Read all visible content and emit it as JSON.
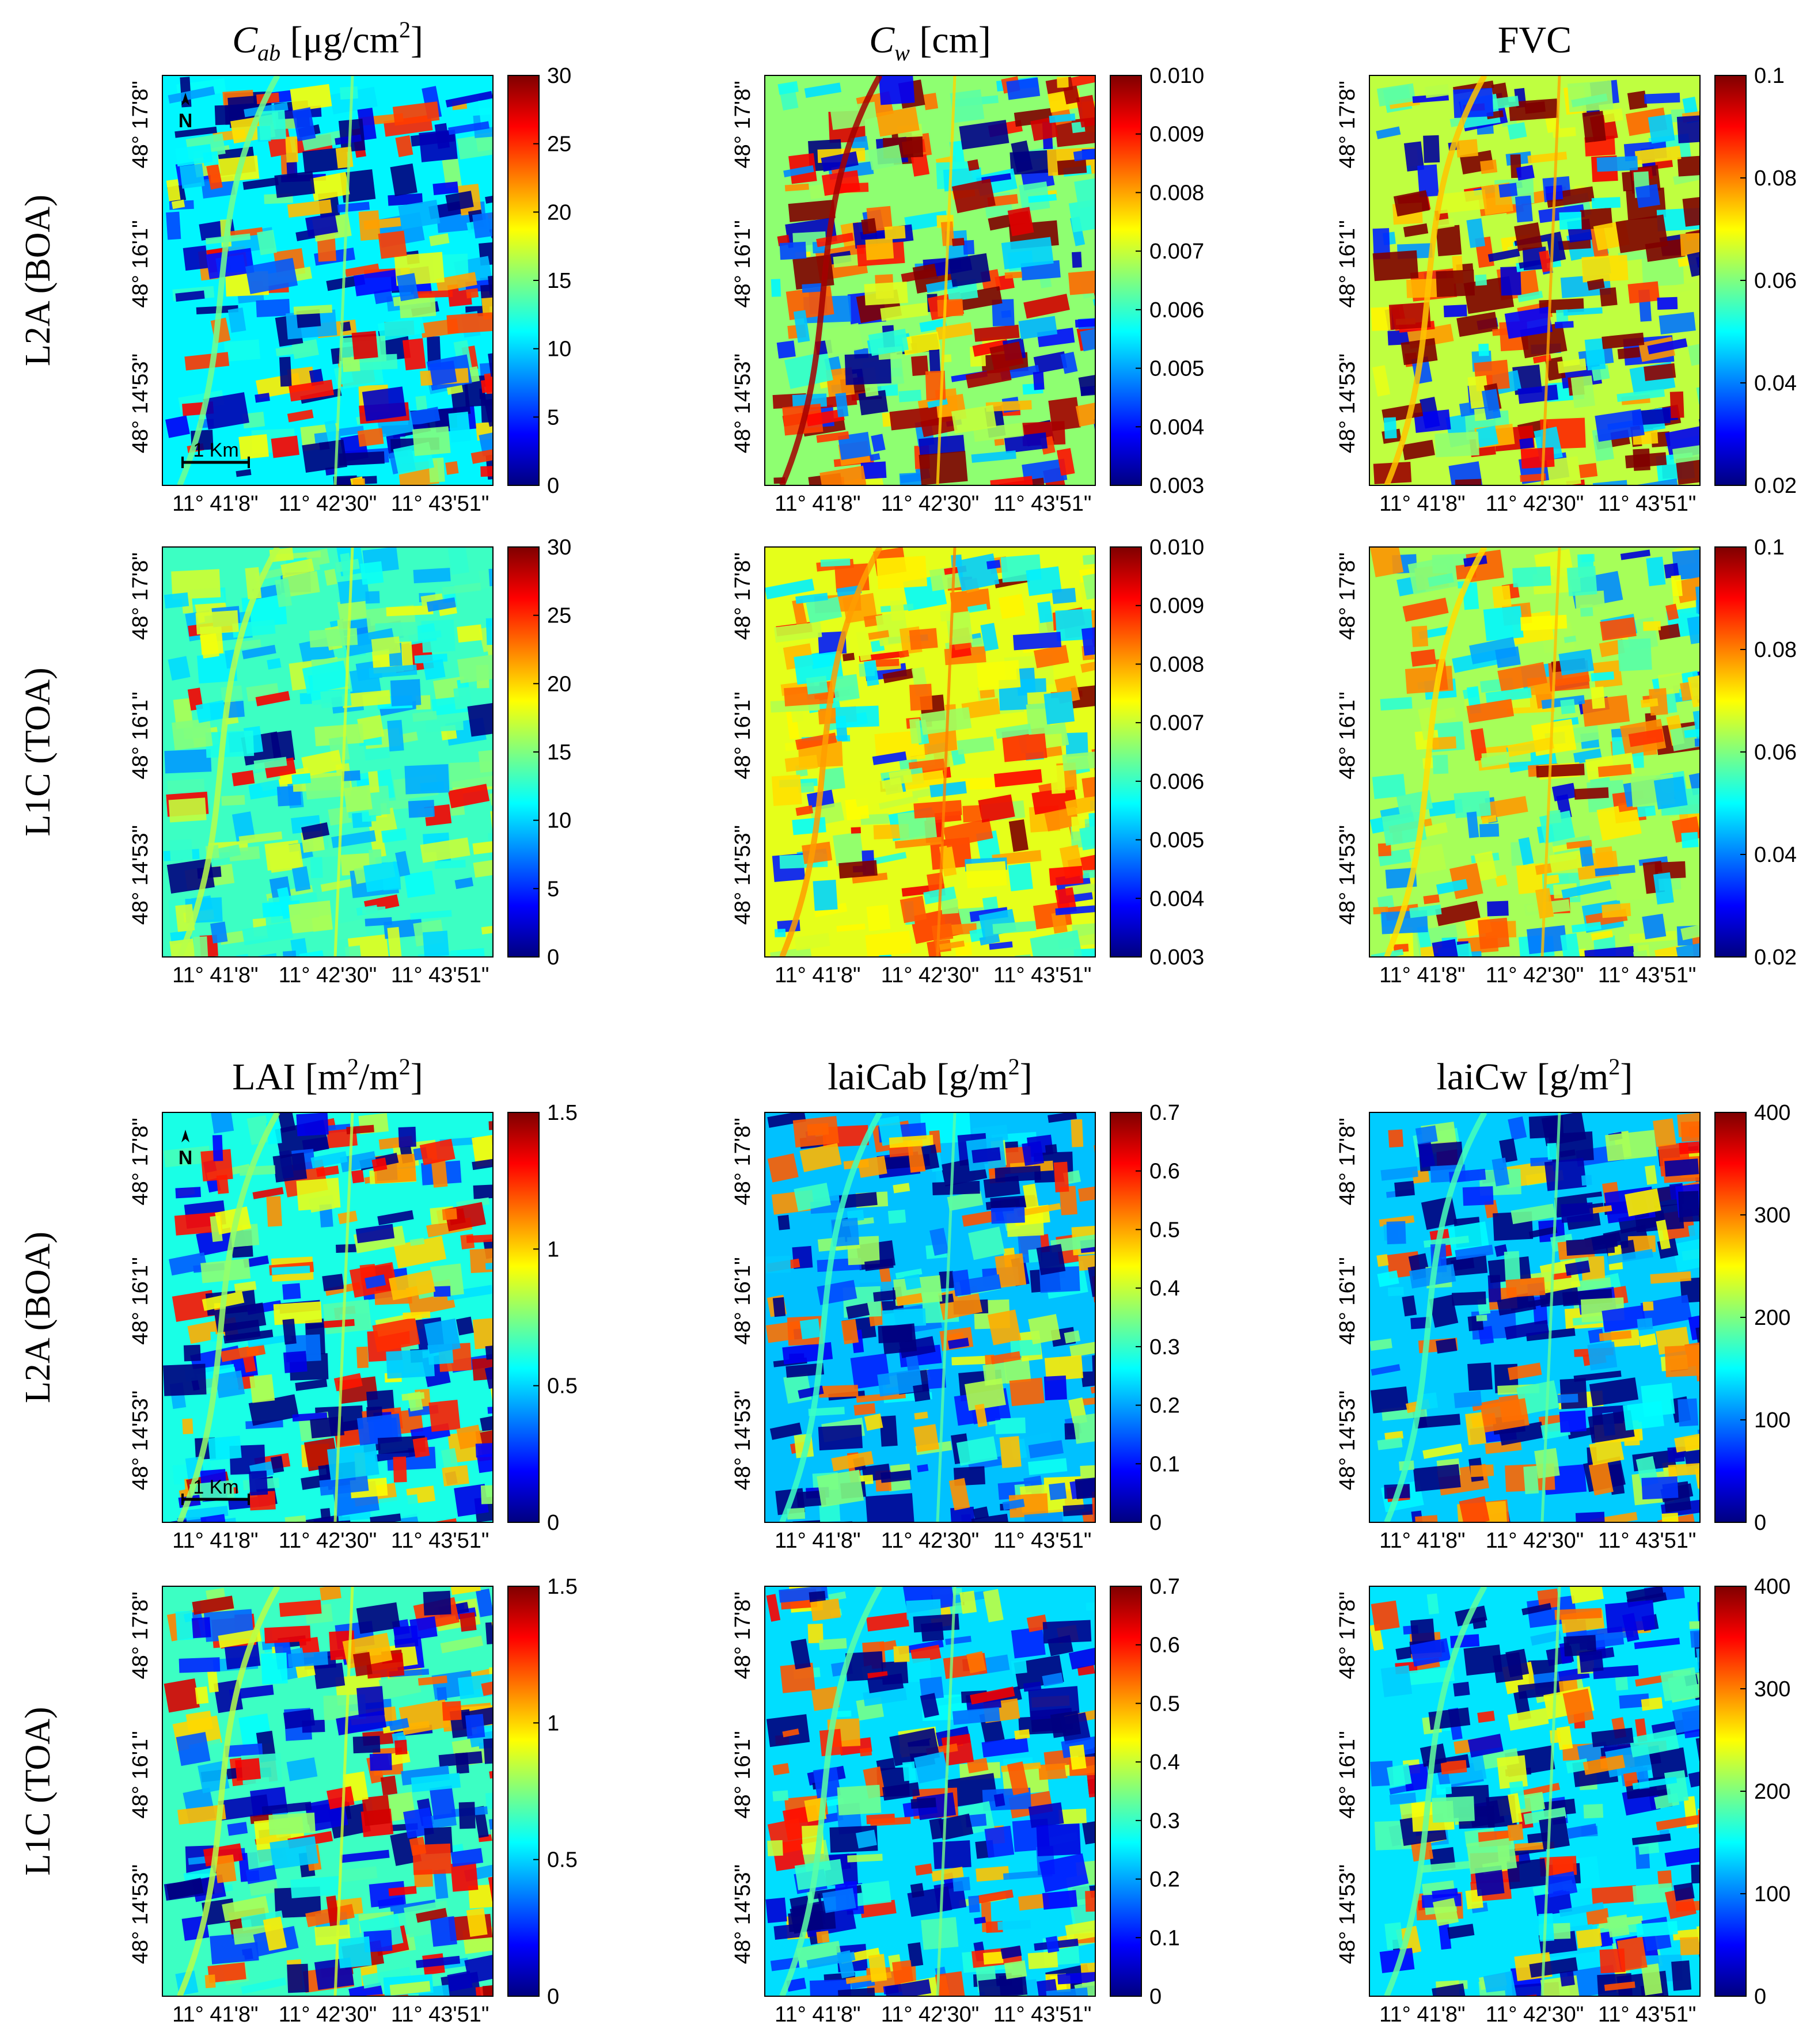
{
  "figure": {
    "row_labels": [
      "L2A (BOA)",
      "L1C (TOA)",
      "L2A (BOA)",
      "L1C (TOA)"
    ],
    "lon_ticks": [
      "11° 41'8\"",
      "11° 42'30\"",
      "11° 43'51\""
    ],
    "lat_ticks": [
      "48° 17'8\"",
      "48° 16'1\"",
      "48° 14'53\""
    ],
    "north_label": "N",
    "scale_label": "1 Km",
    "colormap": "jet",
    "jet_stops": [
      "#00007f",
      "#0000ff",
      "#007fff",
      "#00ffff",
      "#7fff7f",
      "#ffff00",
      "#ff7f00",
      "#ff0000",
      "#7f0000"
    ]
  },
  "chart_data": [
    {
      "type": "heatmap",
      "variable": "Cab",
      "title": "Cab [μg/cm2]",
      "title_main": "C",
      "title_sub": "ab",
      "title_unit_pre": " [μg/cm",
      "title_sup": "2",
      "title_unit_post": "]",
      "product": "L2A (BOA)",
      "colorbar_ticks": [
        "0",
        "5",
        "10",
        "15",
        "20",
        "25",
        "30"
      ],
      "clim": [
        0,
        30
      ],
      "typical_value": 11,
      "annotations": [
        "N",
        "1 Km"
      ]
    },
    {
      "type": "heatmap",
      "variable": "Cw",
      "title": "Cw [cm]",
      "title_main": "C",
      "title_sub": "w",
      "title_unit_pre": " [cm]",
      "title_sup": "",
      "title_unit_post": "",
      "product": "L2A (BOA)",
      "colorbar_ticks": [
        "0.003",
        "0.004",
        "0.005",
        "0.006",
        "0.007",
        "0.008",
        "0.009",
        "0.010"
      ],
      "clim": [
        0.003,
        0.01
      ],
      "typical_value": 0.0066
    },
    {
      "type": "heatmap",
      "variable": "FVC",
      "title": "FVC",
      "title_main": "FVC",
      "title_sub": "",
      "title_unit_pre": "",
      "title_sup": "",
      "title_unit_post": "",
      "product": "L2A (BOA)",
      "colorbar_ticks": [
        "0.02",
        "0.04",
        "0.06",
        "0.08",
        "0.1"
      ],
      "clim": [
        0.02,
        0.1
      ],
      "typical_value": 0.065
    },
    {
      "type": "heatmap",
      "variable": "Cab",
      "product": "L1C (TOA)",
      "colorbar_ticks": [
        "0",
        "5",
        "10",
        "15",
        "20",
        "25",
        "30"
      ],
      "clim": [
        0,
        30
      ],
      "typical_value": 13
    },
    {
      "type": "heatmap",
      "variable": "Cw",
      "product": "L1C (TOA)",
      "colorbar_ticks": [
        "0.003",
        "0.004",
        "0.005",
        "0.006",
        "0.007",
        "0.008",
        "0.009",
        "0.010"
      ],
      "clim": [
        0.003,
        0.01
      ],
      "typical_value": 0.0072
    },
    {
      "type": "heatmap",
      "variable": "FVC",
      "product": "L1C (TOA)",
      "colorbar_ticks": [
        "0.02",
        "0.04",
        "0.06",
        "0.08",
        "0.1"
      ],
      "clim": [
        0.02,
        0.1
      ],
      "typical_value": 0.063
    },
    {
      "type": "heatmap",
      "variable": "LAI",
      "title": "LAI [m2/m2]",
      "title_main": "LAI [m",
      "title_sub": "",
      "title_unit_pre": "",
      "title_sup": "2",
      "title_unit_post": "/m",
      "title_sup2": "2",
      "title_end": "]",
      "product": "L2A (BOA)",
      "colorbar_ticks": [
        "0",
        "0.5",
        "1",
        "1.5"
      ],
      "clim": [
        0,
        1.5
      ],
      "typical_value": 0.6,
      "annotations": [
        "N",
        "1 Km"
      ]
    },
    {
      "type": "heatmap",
      "variable": "laiCab",
      "title": "laiCab [g/m2]",
      "title_main": "laiCab [g/m",
      "title_sub": "",
      "title_unit_pre": "",
      "title_sup": "2",
      "title_unit_post": "]",
      "product": "L2A (BOA)",
      "colorbar_ticks": [
        "0",
        "0.1",
        "0.2",
        "0.3",
        "0.4",
        "0.5",
        "0.6",
        "0.7"
      ],
      "clim": [
        0,
        0.7
      ],
      "typical_value": 0.22
    },
    {
      "type": "heatmap",
      "variable": "laiCw",
      "title": "laiCw [g/m2]",
      "title_main": "laiCw [g/m",
      "title_sub": "",
      "title_unit_pre": "",
      "title_sup": "2",
      "title_unit_post": "]",
      "product": "L2A (BOA)",
      "colorbar_ticks": [
        "0",
        "100",
        "200",
        "300",
        "400"
      ],
      "clim": [
        0,
        400
      ],
      "typical_value": 130
    },
    {
      "type": "heatmap",
      "variable": "LAI",
      "product": "L1C (TOA)",
      "colorbar_ticks": [
        "0",
        "0.5",
        "1",
        "1.5"
      ],
      "clim": [
        0,
        1.5
      ],
      "typical_value": 0.65
    },
    {
      "type": "heatmap",
      "variable": "laiCab",
      "product": "L1C (TOA)",
      "colorbar_ticks": [
        "0",
        "0.1",
        "0.2",
        "0.3",
        "0.4",
        "0.5",
        "0.6",
        "0.7"
      ],
      "clim": [
        0,
        0.7
      ],
      "typical_value": 0.24
    },
    {
      "type": "heatmap",
      "variable": "laiCw",
      "product": "L1C (TOA)",
      "colorbar_ticks": [
        "0",
        "100",
        "200",
        "300",
        "400"
      ],
      "clim": [
        0,
        400
      ],
      "typical_value": 140
    }
  ]
}
